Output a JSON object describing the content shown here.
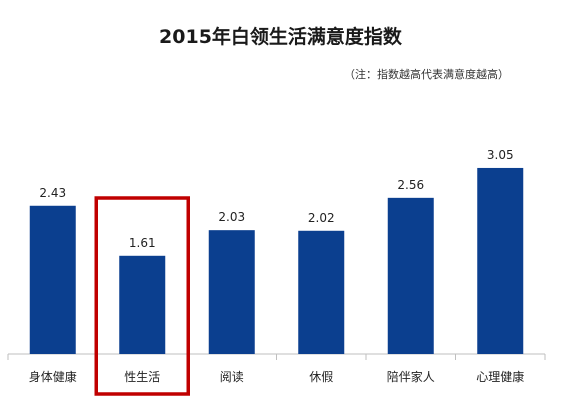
{
  "title": "2015年白领生活满意度指数",
  "note": "（注：指数越高代表满意度越高）",
  "colors": {
    "bar": "#0b3f8f",
    "highlight_box": "#c00000",
    "axis": "#bfbfbf"
  },
  "chart_data": {
    "type": "bar",
    "title": "2015年白领生活满意度指数",
    "categories": [
      "身体健康",
      "性生活",
      "阅读",
      "休假",
      "陪伴家人",
      "心理健康"
    ],
    "values": [
      2.43,
      1.61,
      2.03,
      2.02,
      2.56,
      3.05
    ],
    "value_labels": [
      "2.43",
      "1.61",
      "2.03",
      "2.02",
      "2.56",
      "3.05"
    ],
    "highlighted_category": "性生活",
    "ylim": [
      0,
      3.6
    ],
    "grid": false,
    "legend": "none"
  }
}
